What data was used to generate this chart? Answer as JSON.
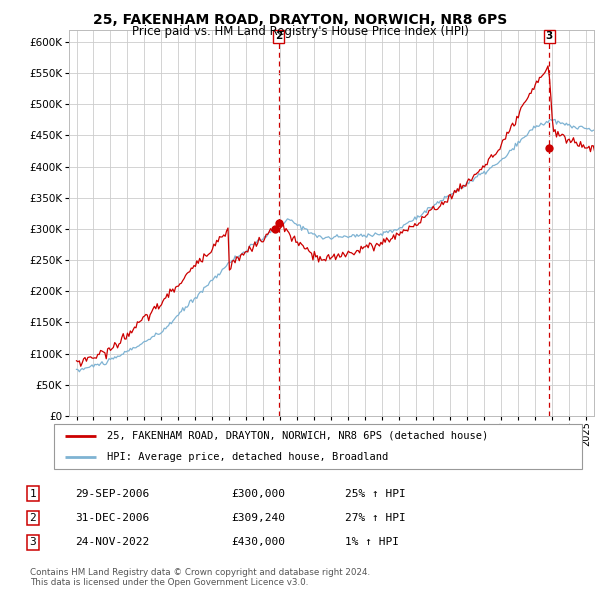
{
  "title": "25, FAKENHAM ROAD, DRAYTON, NORWICH, NR8 6PS",
  "subtitle": "Price paid vs. HM Land Registry's House Price Index (HPI)",
  "legend_label_red": "25, FAKENHAM ROAD, DRAYTON, NORWICH, NR8 6PS (detached house)",
  "legend_label_blue": "HPI: Average price, detached house, Broadland",
  "footer_line1": "Contains HM Land Registry data © Crown copyright and database right 2024.",
  "footer_line2": "This data is licensed under the Open Government Licence v3.0.",
  "table_rows": [
    {
      "num": "1",
      "date": "29-SEP-2006",
      "price": "£300,000",
      "hpi": "25% ↑ HPI"
    },
    {
      "num": "2",
      "date": "31-DEC-2006",
      "price": "£309,240",
      "hpi": "27% ↑ HPI"
    },
    {
      "num": "3",
      "date": "24-NOV-2022",
      "price": "£430,000",
      "hpi": "1% ↑ HPI"
    }
  ],
  "ylim": [
    0,
    620000
  ],
  "yticks": [
    0,
    50000,
    100000,
    150000,
    200000,
    250000,
    300000,
    350000,
    400000,
    450000,
    500000,
    550000,
    600000
  ],
  "red_color": "#cc0000",
  "blue_color": "#7fb3d3",
  "vline_color": "#cc0000",
  "grid_color": "#cccccc",
  "background_color": "#ffffff",
  "title_fontsize": 10,
  "subtitle_fontsize": 8.5
}
